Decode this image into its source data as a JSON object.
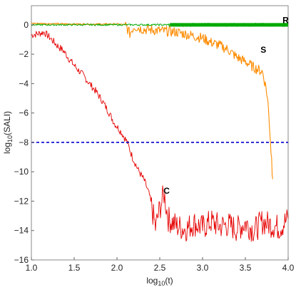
{
  "chart_data": {
    "type": "line",
    "title": "",
    "xlabel": "log10(t)",
    "ylabel": "log10(SALI)",
    "xlim": [
      1.0,
      4.0
    ],
    "ylim": [
      -16,
      1.3
    ],
    "x_ticks": [
      "1.0",
      "1.5",
      "2.0",
      "2.5",
      "3.0",
      "3.5",
      "4.0"
    ],
    "y_ticks": [
      "0",
      "−2",
      "−4",
      "−6",
      "−8",
      "−10",
      "−12",
      "−14",
      "−16"
    ],
    "grid": false,
    "legend": "none",
    "colors": {
      "C": "#e60000",
      "S": "#ff8c00",
      "R": "#00aa00",
      "threshold": "#0000cc"
    },
    "threshold": {
      "y": -8,
      "style": "dashed"
    },
    "series": [
      {
        "name": "C",
        "x": [
          1.0,
          1.08,
          1.15,
          1.22,
          1.3,
          1.38,
          1.45,
          1.52,
          1.6,
          1.68,
          1.75,
          1.82,
          1.9,
          1.97,
          2.05,
          2.12,
          2.18,
          2.25,
          2.32,
          2.38,
          2.45,
          2.5,
          2.55,
          2.6,
          2.7,
          2.8,
          2.9,
          3.0,
          3.1,
          3.2,
          3.3,
          3.4,
          3.5,
          3.6,
          3.7,
          3.8,
          3.9,
          4.0
        ],
        "y": [
          -0.7,
          -0.6,
          -0.5,
          -0.9,
          -1.4,
          -1.8,
          -2.4,
          -2.9,
          -3.4,
          -4.0,
          -4.5,
          -5.1,
          -5.9,
          -6.7,
          -7.3,
          -8.0,
          -9.0,
          -9.9,
          -10.6,
          -11.6,
          -13.8,
          -12.5,
          -11.5,
          -13.2,
          -13.7,
          -13.9,
          -13.5,
          -13.8,
          -13.4,
          -13.7,
          -13.6,
          -13.9,
          -13.5,
          -14.0,
          -13.4,
          -13.6,
          -13.8,
          -13.2
        ]
      },
      {
        "name": "S",
        "x": [
          1.0,
          1.5,
          2.0,
          2.1,
          2.15,
          2.2,
          2.3,
          2.5,
          2.7,
          3.0,
          3.1,
          3.2,
          3.3,
          3.4,
          3.5,
          3.6,
          3.7,
          3.75,
          3.78,
          3.8,
          3.82
        ],
        "y": [
          0.1,
          0.05,
          0.05,
          0.0,
          -0.6,
          -0.1,
          -0.3,
          -0.4,
          -0.5,
          -0.9,
          -1.2,
          -1.4,
          -1.7,
          -2.2,
          -2.5,
          -2.9,
          -3.2,
          -4.5,
          -6.5,
          -8.5,
          -10.5
        ]
      },
      {
        "name": "R",
        "x": [
          1.0,
          1.5,
          2.0,
          2.5,
          3.0,
          3.5,
          4.0
        ],
        "y": [
          0.0,
          0.0,
          0.0,
          0.0,
          0.0,
          0.0,
          0.0
        ]
      }
    ],
    "annotations": [
      {
        "text": "C",
        "x": 2.58,
        "y": -11.3
      },
      {
        "text": "S",
        "x": 3.71,
        "y": -1.7
      },
      {
        "text": "R",
        "x": 3.97,
        "y": 0.3
      }
    ]
  }
}
